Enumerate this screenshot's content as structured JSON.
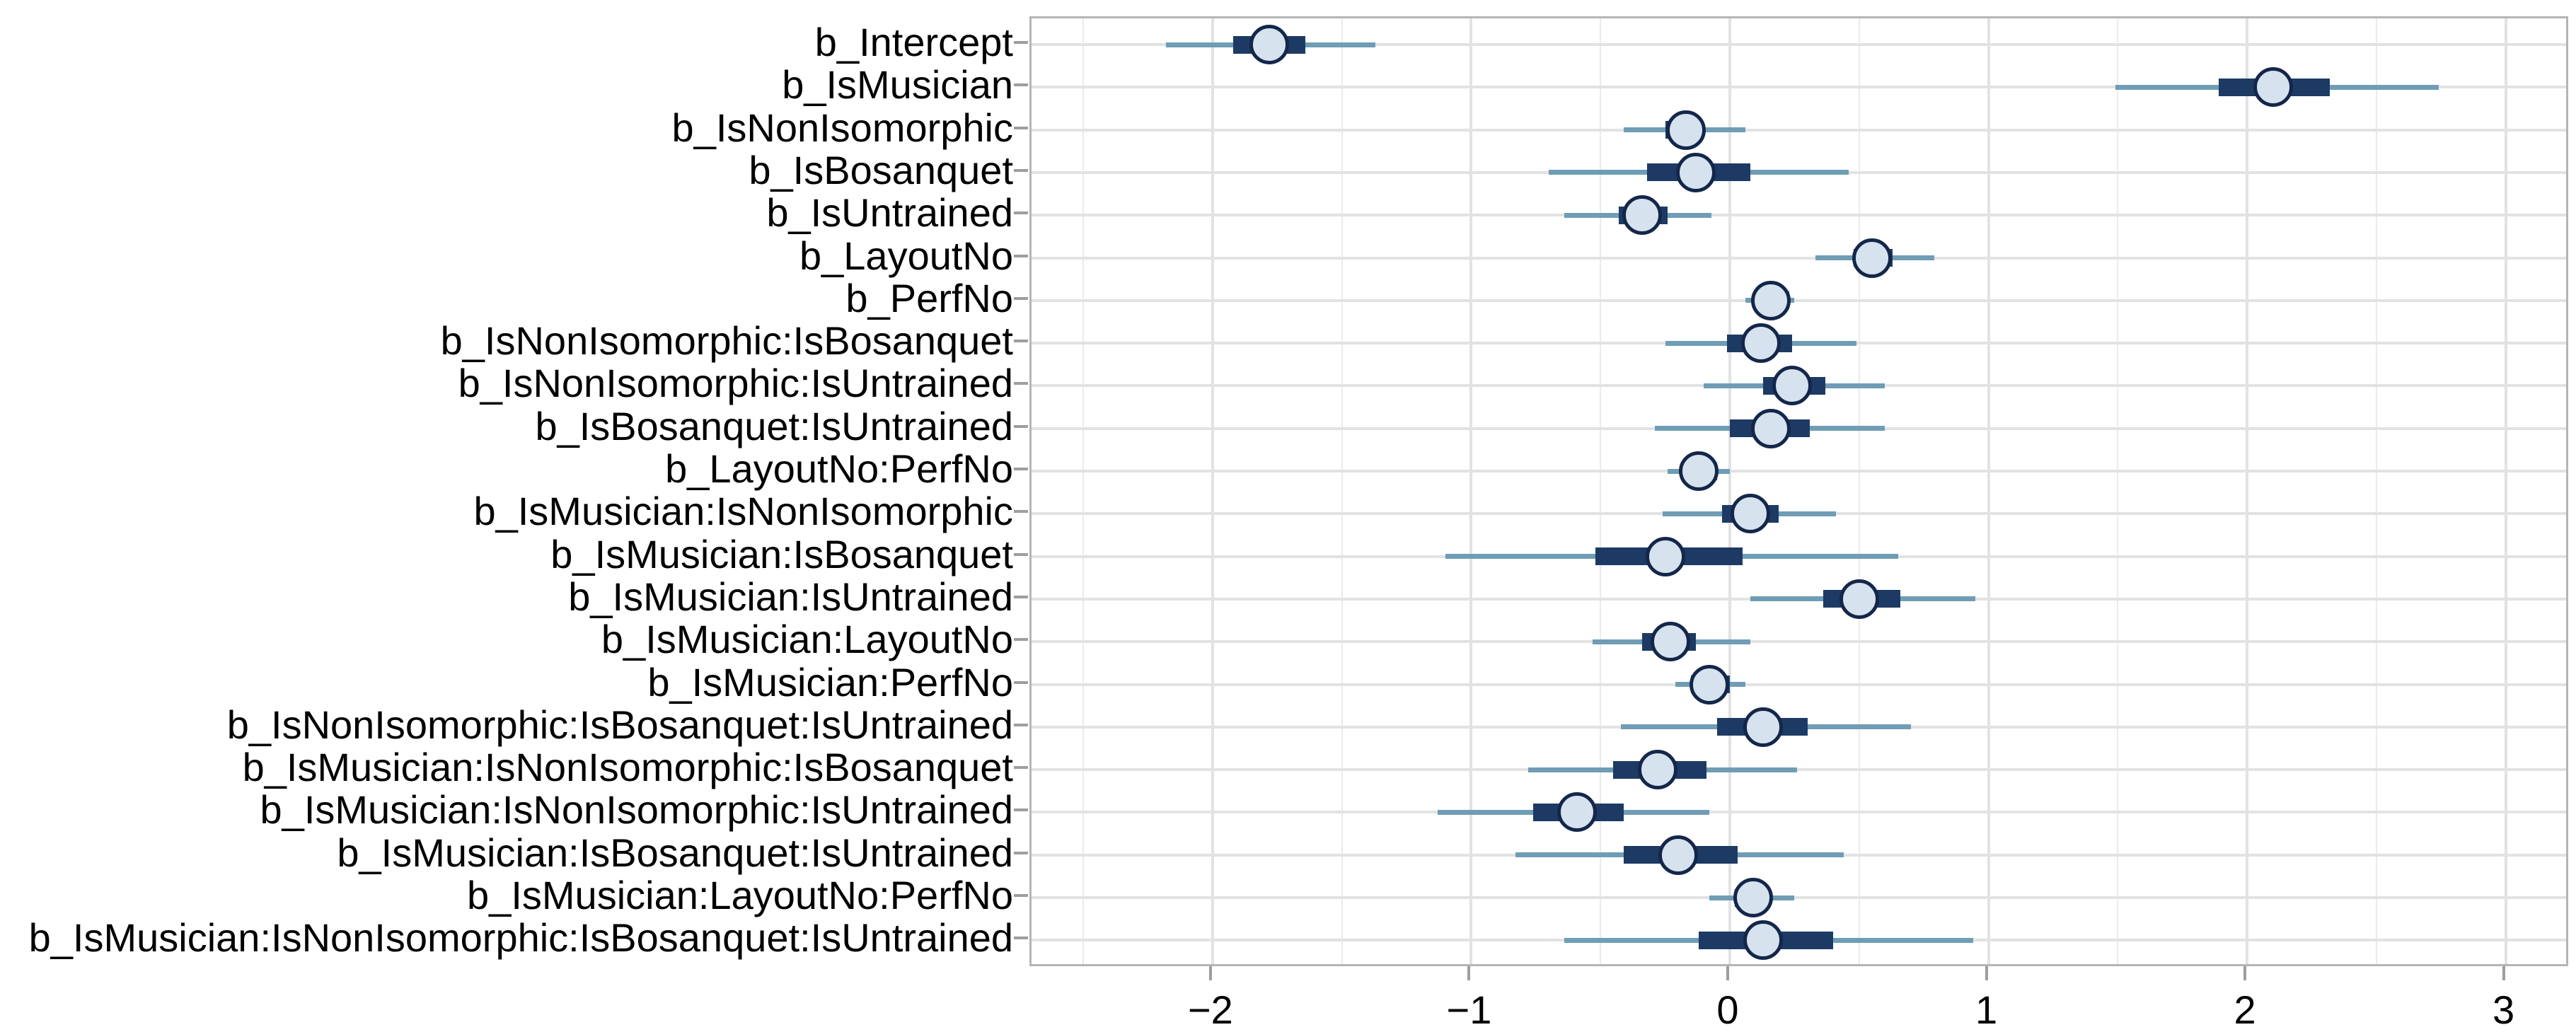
{
  "figure_title": "",
  "chart_data": {
    "type": "scatter",
    "subtype": "interval-forest-plot",
    "title": "",
    "xlabel": "",
    "ylabel": "",
    "xlim": [
      -2.7,
      3.25
    ],
    "x_ticks": [
      -2,
      -1,
      0,
      1,
      2,
      3
    ],
    "x_tick_labels": [
      "−2",
      "−1",
      "0",
      "1",
      "2",
      "3"
    ],
    "x_minor_gridlines": [
      -2.5,
      -1.5,
      -0.5,
      0.5,
      1.5,
      2.5
    ],
    "grid": true,
    "legend": false,
    "rows": [
      {
        "label": "b_Intercept",
        "outer": [
          -2.18,
          -1.37
        ],
        "inner": [
          -1.92,
          -1.64
        ],
        "point": -1.78
      },
      {
        "label": "b_IsMusician",
        "outer": [
          1.49,
          2.74
        ],
        "inner": [
          1.89,
          2.32
        ],
        "point": 2.1
      },
      {
        "label": "b_IsNonIsomorphic",
        "outer": [
          -0.41,
          0.06
        ],
        "inner": [
          -0.25,
          -0.1
        ],
        "point": -0.17
      },
      {
        "label": "b_IsBosanquet",
        "outer": [
          -0.7,
          0.46
        ],
        "inner": [
          -0.32,
          0.08
        ],
        "point": -0.13
      },
      {
        "label": "b_IsUntrained",
        "outer": [
          -0.64,
          -0.07
        ],
        "inner": [
          -0.43,
          -0.24
        ],
        "point": -0.34
      },
      {
        "label": "b_LayoutNo",
        "outer": [
          0.33,
          0.79
        ],
        "inner": [
          0.48,
          0.63
        ],
        "point": 0.55
      },
      {
        "label": "b_PerfNo",
        "outer": [
          0.06,
          0.25
        ],
        "inner": [
          0.1,
          0.23
        ],
        "point": 0.16
      },
      {
        "label": "b_IsNonIsomorphic:IsBosanquet",
        "outer": [
          -0.25,
          0.49
        ],
        "inner": [
          -0.01,
          0.24
        ],
        "point": 0.12
      },
      {
        "label": "b_IsNonIsomorphic:IsUntrained",
        "outer": [
          -0.1,
          0.6
        ],
        "inner": [
          0.13,
          0.37
        ],
        "point": 0.24
      },
      {
        "label": "b_IsBosanquet:IsUntrained",
        "outer": [
          -0.29,
          0.6
        ],
        "inner": [
          0.0,
          0.31
        ],
        "point": 0.16
      },
      {
        "label": "b_LayoutNo:PerfNo",
        "outer": [
          -0.24,
          0.0
        ],
        "inner": [
          -0.19,
          -0.05
        ],
        "point": -0.12
      },
      {
        "label": "b_IsMusician:IsNonIsomorphic",
        "outer": [
          -0.26,
          0.41
        ],
        "inner": [
          -0.03,
          0.19
        ],
        "point": 0.08
      },
      {
        "label": "b_IsMusician:IsBosanquet",
        "outer": [
          -1.1,
          0.65
        ],
        "inner": [
          -0.52,
          0.05
        ],
        "point": -0.25
      },
      {
        "label": "b_IsMusician:IsUntrained",
        "outer": [
          0.08,
          0.95
        ],
        "inner": [
          0.36,
          0.66
        ],
        "point": 0.5
      },
      {
        "label": "b_IsMusician:LayoutNo",
        "outer": [
          -0.53,
          0.08
        ],
        "inner": [
          -0.34,
          -0.13
        ],
        "point": -0.23
      },
      {
        "label": "b_IsMusician:PerfNo",
        "outer": [
          -0.21,
          0.06
        ],
        "inner": [
          -0.15,
          0.0
        ],
        "point": -0.08
      },
      {
        "label": "b_IsNonIsomorphic:IsBosanquet:IsUntrained",
        "outer": [
          -0.42,
          0.7
        ],
        "inner": [
          -0.05,
          0.3
        ],
        "point": 0.13
      },
      {
        "label": "b_IsMusician:IsNonIsomorphic:IsBosanquet",
        "outer": [
          -0.78,
          0.26
        ],
        "inner": [
          -0.45,
          -0.09
        ],
        "point": -0.28
      },
      {
        "label": "b_IsMusician:IsNonIsomorphic:IsUntrained",
        "outer": [
          -1.13,
          -0.08
        ],
        "inner": [
          -0.76,
          -0.41
        ],
        "point": -0.59
      },
      {
        "label": "b_IsMusician:IsBosanquet:IsUntrained",
        "outer": [
          -0.83,
          0.44
        ],
        "inner": [
          -0.41,
          0.03
        ],
        "point": -0.2
      },
      {
        "label": "b_IsMusician:LayoutNo:PerfNo",
        "outer": [
          -0.08,
          0.25
        ],
        "inner": [
          0.02,
          0.16
        ],
        "point": 0.09
      },
      {
        "label": "b_IsMusician:IsNonIsomorphic:IsBosanquet:IsUntrained",
        "outer": [
          -0.64,
          0.94
        ],
        "inner": [
          -0.12,
          0.4
        ],
        "point": 0.13
      }
    ],
    "colors": {
      "outer_line": "#6f9db5",
      "inner_bar": "#1d3a64",
      "point_fill": "#d6e3ef",
      "point_stroke": "#14274a",
      "grid_major": "#e2e2e2",
      "grid_minor": "#ebebeb",
      "panel_border": "#b5b5b5",
      "axis_tick": "#9e9e9e",
      "text": "#000000"
    }
  }
}
